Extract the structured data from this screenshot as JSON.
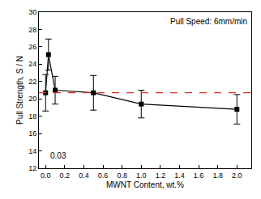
{
  "chart_data": {
    "type": "line",
    "x_label": "MWNT Content, wt.%",
    "y_label": "Pull Strength, S / N",
    "series": [
      {
        "name": "Pull Strength",
        "color": "#000000",
        "marker": "square",
        "line_style": "solid",
        "x": [
          0,
          0.03,
          0.1,
          0.5,
          1.0,
          2.0
        ],
        "values": [
          20.7,
          25.1,
          21.0,
          20.7,
          19.4,
          18.8
        ],
        "errors": [
          2.1,
          1.8,
          1.6,
          2.0,
          1.6,
          1.7
        ]
      }
    ],
    "reference_line": {
      "value": 20.7,
      "color": "#e0302a",
      "line_style": "dash"
    },
    "annotations": [
      {
        "text": "Pull Speed: 6mm/min"
      },
      {
        "text": "0.03",
        "x": 0.03
      }
    ],
    "xlim": [
      -0.07,
      2.15
    ],
    "xticks": [
      {
        "value": 0,
        "label": "0.0"
      },
      0.2,
      0.4,
      0.6,
      0.8,
      {
        "value": 1,
        "label": "1.0"
      },
      1.2,
      1.4,
      1.6,
      1.8,
      {
        "value": 2,
        "label": "2.0"
      }
    ],
    "ylim": [
      12,
      30
    ],
    "yticks": [
      12,
      14,
      16,
      18,
      20,
      22,
      24,
      26,
      28,
      30
    ],
    "grid": false
  }
}
